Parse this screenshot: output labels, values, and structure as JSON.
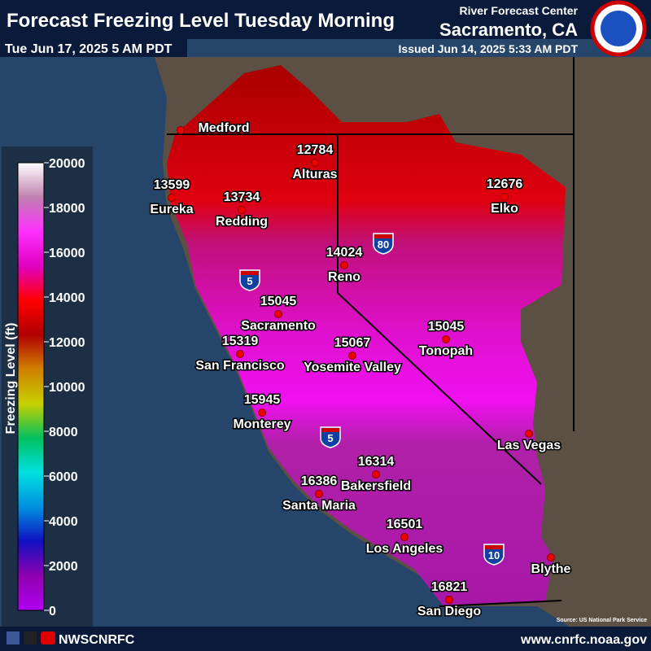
{
  "header": {
    "title": "Forecast Freezing Level Tuesday Morning",
    "valid": "Tue Jun 17, 2025 5 AM PDT",
    "agency": "River Forecast Center",
    "office": "Sacramento, CA",
    "issued": "Issued Jun 14, 2025 5:33 AM PDT"
  },
  "legend": {
    "label": "Freezing Level (ft)",
    "ticks": [
      0,
      2000,
      4000,
      6000,
      8000,
      10000,
      12000,
      14000,
      16000,
      18000,
      20000
    ],
    "colors": [
      "#b000f0",
      "#9000b0",
      "#1010c0",
      "#0090e0",
      "#00e0e0",
      "#00c060",
      "#c8d000",
      "#d08000",
      "#b00000",
      "#ff0000",
      "#e000c0",
      "#ff30ff",
      "#c080b0",
      "#ffffff"
    ]
  },
  "cities": [
    {
      "name": "Medford"
    },
    {
      "name": "Eureka",
      "value": "13599"
    },
    {
      "name": "Redding",
      "value": "13734"
    },
    {
      "name": "Alturas",
      "value": "12784"
    },
    {
      "name": "Elko",
      "value": "12676"
    },
    {
      "name": "Reno",
      "value": "14024"
    },
    {
      "name": "Sacramento",
      "value": "15045"
    },
    {
      "name": "San Francisco",
      "value": "15319"
    },
    {
      "name": "Yosemite Valley",
      "value": "15067"
    },
    {
      "name": "Tonopah",
      "value": "15045"
    },
    {
      "name": "Monterey",
      "value": "15945"
    },
    {
      "name": "Las Vegas"
    },
    {
      "name": "Bakersfield",
      "value": "16314"
    },
    {
      "name": "Santa Maria",
      "value": "16386"
    },
    {
      "name": "Los Angeles",
      "value": "16501"
    },
    {
      "name": "Blythe"
    },
    {
      "name": "San Diego",
      "value": "16821"
    }
  ],
  "highways": [
    "5",
    "80",
    "5",
    "10"
  ],
  "source": "Source: US National Park Service",
  "footer": {
    "social": "NWSCNRFC",
    "url": "www.cnrfc.noaa.gov"
  }
}
